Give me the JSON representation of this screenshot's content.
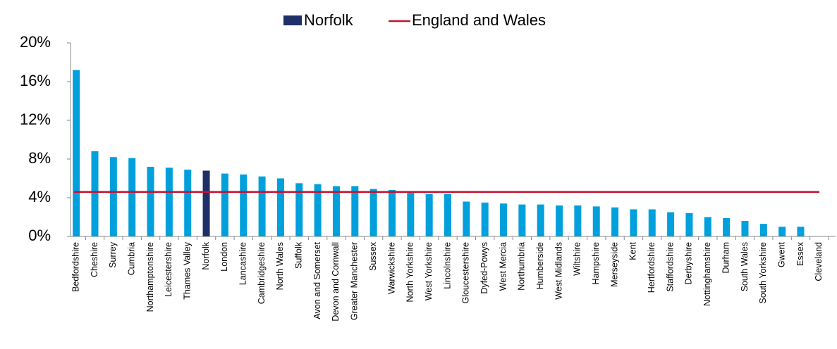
{
  "chart_data": {
    "type": "bar",
    "categories": [
      "Bedfordshire",
      "Cheshire",
      "Surrey",
      "Cumbria",
      "Northamptonshire",
      "Leicestershire",
      "Thames Valley",
      "Norfolk",
      "London",
      "Lancashire",
      "Cambridgeshire",
      "North Wales",
      "Suffolk",
      "Avon and Somerset",
      "Devon and Cornwall",
      "Greater Manchester",
      "Sussex",
      "Warwickshire",
      "North Yorkshire",
      "West Yorkshire",
      "Lincolnshire",
      "Gloucestershire",
      "Dyfed-Powys",
      "West Mercia",
      "Northumbria",
      "Humberside",
      "West Midlands",
      "Wiltshire",
      "Hampshire",
      "Merseyside",
      "Kent",
      "Hertfordshire",
      "Staffordshire",
      "Derbyshire",
      "Nottinghamshire",
      "Durham",
      "South Wales",
      "South Yorkshire",
      "Gwent",
      "Essex",
      "Cleveland"
    ],
    "values": [
      17.2,
      8.8,
      8.2,
      8.1,
      7.2,
      7.1,
      6.9,
      6.8,
      6.5,
      6.4,
      6.2,
      6.0,
      5.5,
      5.4,
      5.2,
      5.2,
      4.9,
      4.8,
      4.5,
      4.4,
      4.4,
      3.6,
      3.5,
      3.4,
      3.3,
      3.3,
      3.2,
      3.2,
      3.1,
      3.0,
      2.8,
      2.8,
      2.5,
      2.4,
      2.0,
      1.9,
      1.6,
      1.3,
      1.0,
      1.0,
      0
    ],
    "color": "#00a0dc",
    "highlight": {
      "name": "Norfolk",
      "color": "#1f3068"
    },
    "reference_line": {
      "name": "England and Wales",
      "value": 4.6,
      "color": "#c8102e"
    },
    "ylim": [
      0,
      20
    ],
    "yticks": [
      {
        "value": 0,
        "label": "0%"
      },
      {
        "value": 4,
        "label": "4%"
      },
      {
        "value": 8,
        "label": "8%"
      },
      {
        "value": 12,
        "label": "12%"
      },
      {
        "value": 16,
        "label": "16%"
      },
      {
        "value": 20,
        "label": "20%"
      }
    ],
    "grid": false
  }
}
